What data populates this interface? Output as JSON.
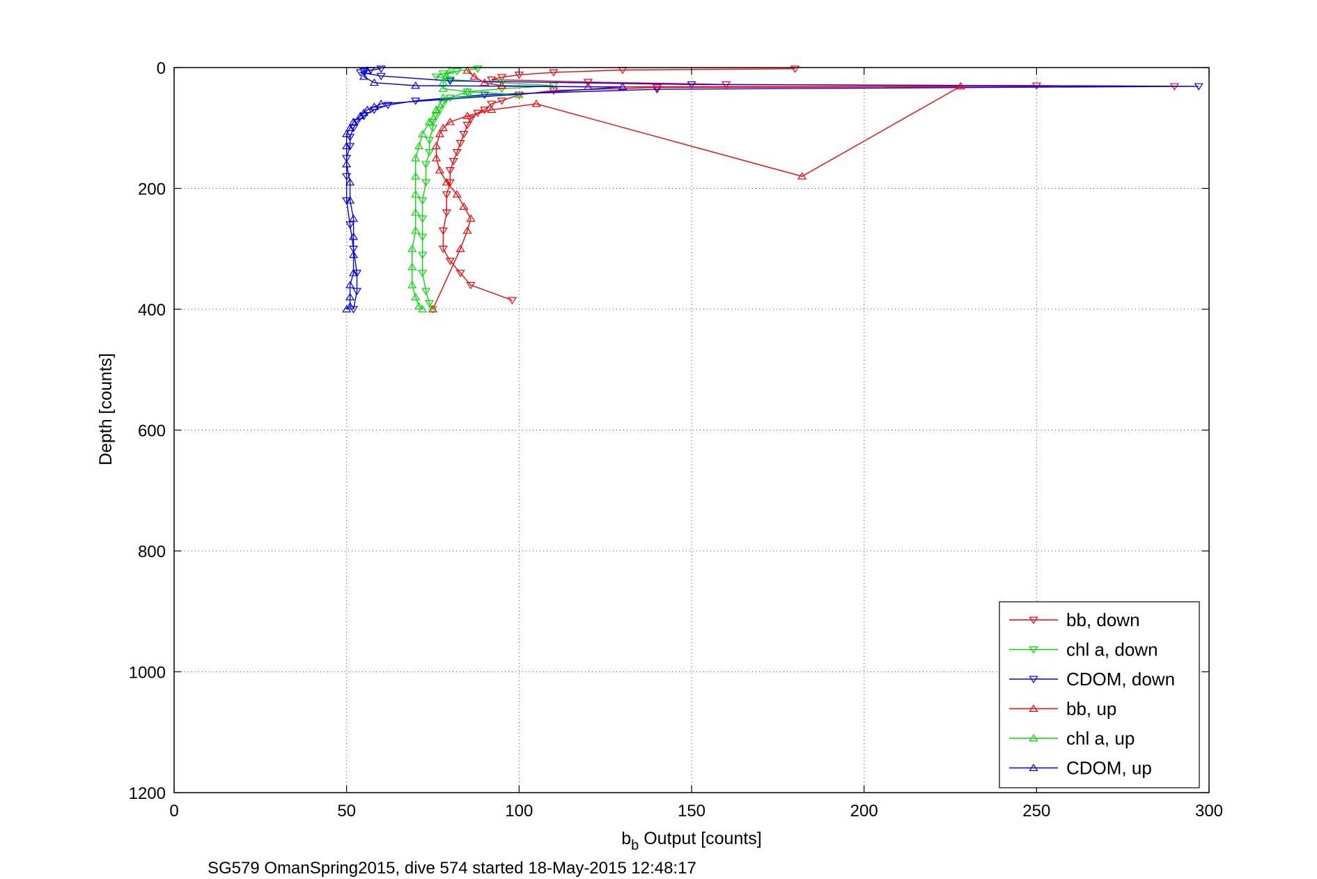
{
  "chart_data": {
    "type": "scatter",
    "xlabel": {
      "base": "b",
      "subscript": "b",
      "rest": " Output [counts]"
    },
    "ylabel": "Depth [counts]",
    "caption": "SG579 OmanSpring2015, dive 574 started 18-May-2015 12:48:17",
    "xlim": [
      0,
      300
    ],
    "ylim": [
      0,
      1200
    ],
    "y_reversed": true,
    "xticks": [
      "0",
      "50",
      "100",
      "150",
      "200",
      "250",
      "300"
    ],
    "yticks": [
      "0",
      "200",
      "400",
      "600",
      "800",
      "1000",
      "1200"
    ],
    "grid": true,
    "legend_position": "bottom-right",
    "series": [
      {
        "name": "bb, down",
        "color": "#ff0000",
        "marker": "triangle-down",
        "x": [
          180,
          130,
          110,
          100,
          95,
          92,
          120,
          160,
          250,
          290,
          140,
          110,
          100,
          95,
          92,
          90,
          88,
          86,
          85,
          84,
          83,
          82,
          81,
          80,
          80,
          79,
          79,
          78,
          78,
          80,
          83,
          86,
          98
        ],
        "y": [
          2,
          4,
          8,
          12,
          16,
          20,
          24,
          28,
          30,
          31,
          33,
          38,
          45,
          55,
          60,
          70,
          75,
          85,
          95,
          110,
          125,
          140,
          155,
          170,
          190,
          210,
          240,
          270,
          300,
          320,
          340,
          360,
          385
        ]
      },
      {
        "name": "chl a, down",
        "color": "#00dd00",
        "marker": "triangle-down",
        "x": [
          88,
          82,
          78,
          76,
          80,
          95,
          110,
          95,
          85,
          80,
          78,
          77,
          76,
          75,
          75,
          74,
          74,
          73,
          73,
          72,
          72,
          72,
          72,
          72,
          73,
          74,
          75
        ],
        "y": [
          2,
          6,
          10,
          15,
          20,
          25,
          30,
          35,
          40,
          50,
          60,
          70,
          80,
          90,
          100,
          120,
          140,
          160,
          190,
          220,
          250,
          280,
          310,
          340,
          370,
          390,
          400
        ]
      },
      {
        "name": "CDOM, down",
        "color": "#0000ff",
        "marker": "triangle-down",
        "x": [
          60,
          57,
          55,
          54,
          60,
          80,
          150,
          297,
          140,
          90,
          70,
          62,
          58,
          55,
          53,
          52,
          51,
          51,
          50,
          50,
          50,
          51,
          52,
          53,
          53,
          52
        ],
        "y": [
          2,
          4,
          6,
          8,
          14,
          22,
          28,
          31,
          36,
          45,
          55,
          62,
          70,
          80,
          90,
          100,
          115,
          130,
          150,
          180,
          220,
          260,
          300,
          340,
          370,
          400
        ]
      },
      {
        "name": "bb, up",
        "color": "#ff0000",
        "marker": "triangle-up",
        "x": [
          85,
          87,
          90,
          95,
          120,
          228,
          182,
          105,
          92,
          85,
          80,
          78,
          77,
          76,
          76,
          77,
          79,
          82,
          84,
          86,
          85,
          83,
          75
        ],
        "y": [
          5,
          15,
          25,
          30,
          32,
          31,
          180,
          60,
          70,
          80,
          90,
          100,
          110,
          130,
          150,
          170,
          190,
          210,
          230,
          250,
          270,
          300,
          400
        ]
      },
      {
        "name": "chl a, up",
        "color": "#00dd00",
        "marker": "triangle-up",
        "x": [
          80,
          79,
          78,
          78,
          85,
          100,
          78,
          76,
          74,
          72,
          71,
          70,
          70,
          70,
          70,
          70,
          69,
          69,
          69,
          70,
          71,
          72
        ],
        "y": [
          5,
          15,
          25,
          35,
          40,
          45,
          50,
          70,
          90,
          110,
          130,
          150,
          180,
          210,
          240,
          270,
          300,
          330,
          360,
          380,
          395,
          400
        ]
      },
      {
        "name": "CDOM, up",
        "color": "#0000ff",
        "marker": "triangle-up",
        "x": [
          56,
          55,
          58,
          70,
          130,
          60,
          58,
          56,
          55,
          54,
          52,
          51,
          50,
          50,
          50,
          51,
          51,
          52,
          52,
          52,
          52,
          51,
          51,
          51,
          50
        ],
        "y": [
          5,
          15,
          25,
          30,
          32,
          60,
          65,
          70,
          75,
          80,
          90,
          100,
          110,
          130,
          160,
          190,
          220,
          250,
          280,
          310,
          340,
          360,
          380,
          395,
          400
        ]
      }
    ]
  }
}
